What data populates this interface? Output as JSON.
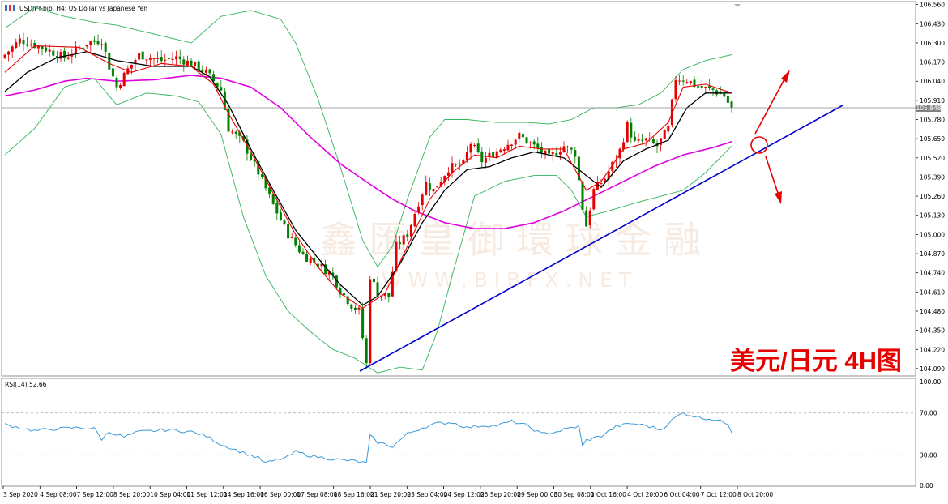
{
  "window": {
    "symbol_info": "USDJPY-bib, H4:  US Dollar vs Japanese Yen",
    "rsi_label": "RSI(14) 52.66"
  },
  "annotation": {
    "label": "美元/日元 4H图"
  },
  "watermark": {
    "brand": "鑫 匯 皇 御 環 球 金 融",
    "url": "W W W . B I B F X . N E T"
  },
  "colors": {
    "bull": "#e60000",
    "bear": "#008000",
    "fast_ma": "#e60000",
    "mid_ma": "#000000",
    "slow_ma": "#e000e0",
    "bands": "#32b45a",
    "trendline": "#0000cc",
    "arrows": "#e60000",
    "rsi": "#3a9ad9",
    "price_line": "#888888"
  },
  "chart_data": {
    "type": "candlestick",
    "price_axis": {
      "min": 104.04,
      "max": 106.58,
      "ticks": [
        "106.560",
        "106.430",
        "106.300",
        "106.170",
        "106.040",
        "105.910",
        "105.780",
        "105.650",
        "105.520",
        "105.390",
        "105.260",
        "105.130",
        "105.000",
        "104.870",
        "104.740",
        "104.610",
        "104.480",
        "104.350",
        "104.220",
        "104.090"
      ],
      "current_price": "105.848"
    },
    "rsi_axis": {
      "ticks": [
        "100.00",
        "70.00",
        "30.00",
        "0.00"
      ],
      "levels": [
        70,
        30
      ],
      "current": 52.66
    },
    "time_labels": [
      "3 Sep 2020",
      "4 Sep 08:00",
      "7 Sep 12:00",
      "8 Sep 20:00",
      "10 Sep 04:00",
      "11 Sep 12:00",
      "14 Sep 16:00",
      "16 Sep 00:00",
      "17 Sep 08:00",
      "18 Sep 16:00",
      "21 Sep 20:00",
      "23 Sep 04:00",
      "24 Sep 12:00",
      "25 Sep 20:00",
      "29 Sep 00:00",
      "30 Sep 08:00",
      "1 Oct 16:00",
      "4 Oct 20:00",
      "6 Oct 04:00",
      "7 Oct 12:00",
      "8 Oct 20:00"
    ],
    "close_path": [
      [
        0,
        106.22
      ],
      [
        4,
        106.32
      ],
      [
        10,
        106.27
      ],
      [
        16,
        106.2
      ],
      [
        22,
        106.3
      ],
      [
        26,
        106.32
      ],
      [
        28,
        106.14
      ],
      [
        30,
        106.0
      ],
      [
        33,
        106.12
      ],
      [
        36,
        106.22
      ],
      [
        42,
        106.18
      ],
      [
        46,
        106.2
      ],
      [
        50,
        106.16
      ],
      [
        54,
        106.1
      ],
      [
        58,
        105.98
      ],
      [
        60,
        105.72
      ],
      [
        64,
        105.62
      ],
      [
        68,
        105.42
      ],
      [
        72,
        105.2
      ],
      [
        76,
        105.0
      ],
      [
        80,
        104.86
      ],
      [
        84,
        104.8
      ],
      [
        88,
        104.72
      ],
      [
        90,
        104.62
      ],
      [
        93,
        104.52
      ],
      [
        95,
        104.48
      ],
      [
        97,
        104.12
      ],
      [
        98,
        104.72
      ],
      [
        100,
        104.6
      ],
      [
        103,
        104.58
      ],
      [
        105,
        104.92
      ],
      [
        108,
        105.0
      ],
      [
        111,
        105.22
      ],
      [
        113,
        105.35
      ],
      [
        115,
        105.3
      ],
      [
        119,
        105.45
      ],
      [
        123,
        105.48
      ],
      [
        125,
        105.62
      ],
      [
        128,
        105.5
      ],
      [
        131,
        105.55
      ],
      [
        134,
        105.6
      ],
      [
        138,
        105.67
      ],
      [
        143,
        105.58
      ],
      [
        146,
        105.52
      ],
      [
        150,
        105.6
      ],
      [
        153,
        105.55
      ],
      [
        155,
        105.18
      ],
      [
        156,
        105.06
      ],
      [
        158,
        105.3
      ],
      [
        161,
        105.38
      ],
      [
        165,
        105.57
      ],
      [
        167,
        105.74
      ],
      [
        169,
        105.62
      ],
      [
        172,
        105.64
      ],
      [
        175,
        105.6
      ],
      [
        178,
        105.72
      ],
      [
        180,
        106.06
      ],
      [
        183,
        106.05
      ],
      [
        186,
        106.0
      ],
      [
        190,
        105.98
      ],
      [
        193,
        105.94
      ],
      [
        195,
        105.85
      ]
    ],
    "fast_ma_path": [
      [
        0,
        106.1
      ],
      [
        8,
        106.28
      ],
      [
        20,
        106.27
      ],
      [
        28,
        106.16
      ],
      [
        34,
        106.1
      ],
      [
        42,
        106.16
      ],
      [
        50,
        106.14
      ],
      [
        56,
        106.02
      ],
      [
        60,
        105.82
      ],
      [
        66,
        105.56
      ],
      [
        72,
        105.28
      ],
      [
        78,
        105.0
      ],
      [
        84,
        104.78
      ],
      [
        90,
        104.6
      ],
      [
        96,
        104.5
      ],
      [
        102,
        104.6
      ],
      [
        108,
        104.92
      ],
      [
        114,
        105.24
      ],
      [
        120,
        105.42
      ],
      [
        126,
        105.54
      ],
      [
        132,
        105.52
      ],
      [
        138,
        105.6
      ],
      [
        144,
        105.58
      ],
      [
        150,
        105.58
      ],
      [
        156,
        105.3
      ],
      [
        160,
        105.36
      ],
      [
        166,
        105.58
      ],
      [
        172,
        105.62
      ],
      [
        178,
        105.76
      ],
      [
        182,
        106.0
      ],
      [
        188,
        106.02
      ],
      [
        195,
        105.96
      ]
    ],
    "mid_ma_path": [
      [
        0,
        105.97
      ],
      [
        6,
        106.1
      ],
      [
        14,
        106.2
      ],
      [
        22,
        106.24
      ],
      [
        30,
        106.18
      ],
      [
        40,
        106.14
      ],
      [
        50,
        106.14
      ],
      [
        55,
        106.07
      ],
      [
        60,
        105.88
      ],
      [
        66,
        105.58
      ],
      [
        72,
        105.3
      ],
      [
        78,
        105.03
      ],
      [
        84,
        104.84
      ],
      [
        90,
        104.66
      ],
      [
        96,
        104.52
      ],
      [
        100,
        104.58
      ],
      [
        106,
        104.8
      ],
      [
        112,
        105.08
      ],
      [
        118,
        105.3
      ],
      [
        124,
        105.44
      ],
      [
        130,
        105.46
      ],
      [
        136,
        105.52
      ],
      [
        142,
        105.56
      ],
      [
        150,
        105.52
      ],
      [
        156,
        105.4
      ],
      [
        160,
        105.32
      ],
      [
        166,
        105.5
      ],
      [
        172,
        105.58
      ],
      [
        178,
        105.64
      ],
      [
        183,
        105.86
      ],
      [
        188,
        105.96
      ],
      [
        195,
        105.96
      ]
    ],
    "slow_ma_path": [
      [
        0,
        105.94
      ],
      [
        8,
        105.98
      ],
      [
        16,
        106.04
      ],
      [
        22,
        106.06
      ],
      [
        30,
        106.04
      ],
      [
        40,
        106.05
      ],
      [
        50,
        106.08
      ],
      [
        58,
        106.06
      ],
      [
        66,
        106.0
      ],
      [
        74,
        105.86
      ],
      [
        82,
        105.66
      ],
      [
        90,
        105.48
      ],
      [
        98,
        105.34
      ],
      [
        104,
        105.24
      ],
      [
        110,
        105.16
      ],
      [
        118,
        105.08
      ],
      [
        126,
        105.04
      ],
      [
        134,
        105.04
      ],
      [
        142,
        105.08
      ],
      [
        150,
        105.16
      ],
      [
        158,
        105.26
      ],
      [
        166,
        105.36
      ],
      [
        174,
        105.46
      ],
      [
        182,
        105.54
      ],
      [
        190,
        105.59
      ],
      [
        195,
        105.63
      ]
    ],
    "upper_band_path": [
      [
        0,
        106.4
      ],
      [
        8,
        106.54
      ],
      [
        16,
        106.48
      ],
      [
        24,
        106.44
      ],
      [
        30,
        106.42
      ],
      [
        40,
        106.36
      ],
      [
        50,
        106.3
      ],
      [
        58,
        106.48
      ],
      [
        66,
        106.52
      ],
      [
        74,
        106.46
      ],
      [
        78,
        106.3
      ],
      [
        84,
        105.92
      ],
      [
        90,
        105.46
      ],
      [
        96,
        104.96
      ],
      [
        100,
        104.78
      ],
      [
        104,
        104.92
      ],
      [
        108,
        105.24
      ],
      [
        114,
        105.66
      ],
      [
        118,
        105.78
      ],
      [
        124,
        105.78
      ],
      [
        132,
        105.76
      ],
      [
        140,
        105.76
      ],
      [
        146,
        105.75
      ],
      [
        152,
        105.78
      ],
      [
        158,
        105.86
      ],
      [
        164,
        105.86
      ],
      [
        170,
        105.88
      ],
      [
        176,
        105.96
      ],
      [
        182,
        106.12
      ],
      [
        188,
        106.18
      ],
      [
        195,
        106.22
      ]
    ],
    "lower_band_path": [
      [
        0,
        105.54
      ],
      [
        8,
        105.72
      ],
      [
        16,
        106.0
      ],
      [
        24,
        106.06
      ],
      [
        30,
        105.88
      ],
      [
        38,
        105.96
      ],
      [
        46,
        105.94
      ],
      [
        52,
        105.9
      ],
      [
        58,
        105.68
      ],
      [
        64,
        105.12
      ],
      [
        70,
        104.72
      ],
      [
        76,
        104.48
      ],
      [
        82,
        104.34
      ],
      [
        88,
        104.22
      ],
      [
        94,
        104.16
      ],
      [
        100,
        104.06
      ],
      [
        106,
        104.1
      ],
      [
        112,
        104.08
      ],
      [
        116,
        104.34
      ],
      [
        120,
        104.72
      ],
      [
        126,
        105.26
      ],
      [
        134,
        105.36
      ],
      [
        142,
        105.4
      ],
      [
        148,
        105.4
      ],
      [
        152,
        105.3
      ],
      [
        156,
        105.12
      ],
      [
        162,
        105.16
      ],
      [
        170,
        105.22
      ],
      [
        176,
        105.26
      ],
      [
        182,
        105.3
      ],
      [
        188,
        105.42
      ],
      [
        195,
        105.6
      ]
    ],
    "rsi_path": [
      [
        0,
        59
      ],
      [
        8,
        53
      ],
      [
        14,
        55
      ],
      [
        20,
        56
      ],
      [
        24,
        55
      ],
      [
        26,
        45
      ],
      [
        28,
        52
      ],
      [
        32,
        47
      ],
      [
        36,
        52
      ],
      [
        44,
        54
      ],
      [
        50,
        52
      ],
      [
        54,
        48
      ],
      [
        58,
        40
      ],
      [
        64,
        32
      ],
      [
        68,
        27
      ],
      [
        70,
        22
      ],
      [
        72,
        24
      ],
      [
        76,
        28
      ],
      [
        78,
        33
      ],
      [
        82,
        29
      ],
      [
        86,
        27
      ],
      [
        90,
        25
      ],
      [
        94,
        24
      ],
      [
        97,
        22
      ],
      [
        98,
        48
      ],
      [
        100,
        42
      ],
      [
        104,
        38
      ],
      [
        108,
        50
      ],
      [
        112,
        56
      ],
      [
        116,
        60
      ],
      [
        120,
        61
      ],
      [
        124,
        56
      ],
      [
        128,
        58
      ],
      [
        132,
        58
      ],
      [
        136,
        62
      ],
      [
        140,
        58
      ],
      [
        144,
        50
      ],
      [
        148,
        52
      ],
      [
        152,
        56
      ],
      [
        154,
        57
      ],
      [
        155,
        38
      ],
      [
        156,
        44
      ],
      [
        160,
        48
      ],
      [
        164,
        57
      ],
      [
        168,
        60
      ],
      [
        172,
        58
      ],
      [
        176,
        54
      ],
      [
        180,
        66
      ],
      [
        182,
        70
      ],
      [
        186,
        66
      ],
      [
        190,
        64
      ],
      [
        194,
        60
      ],
      [
        195,
        52
      ]
    ]
  }
}
